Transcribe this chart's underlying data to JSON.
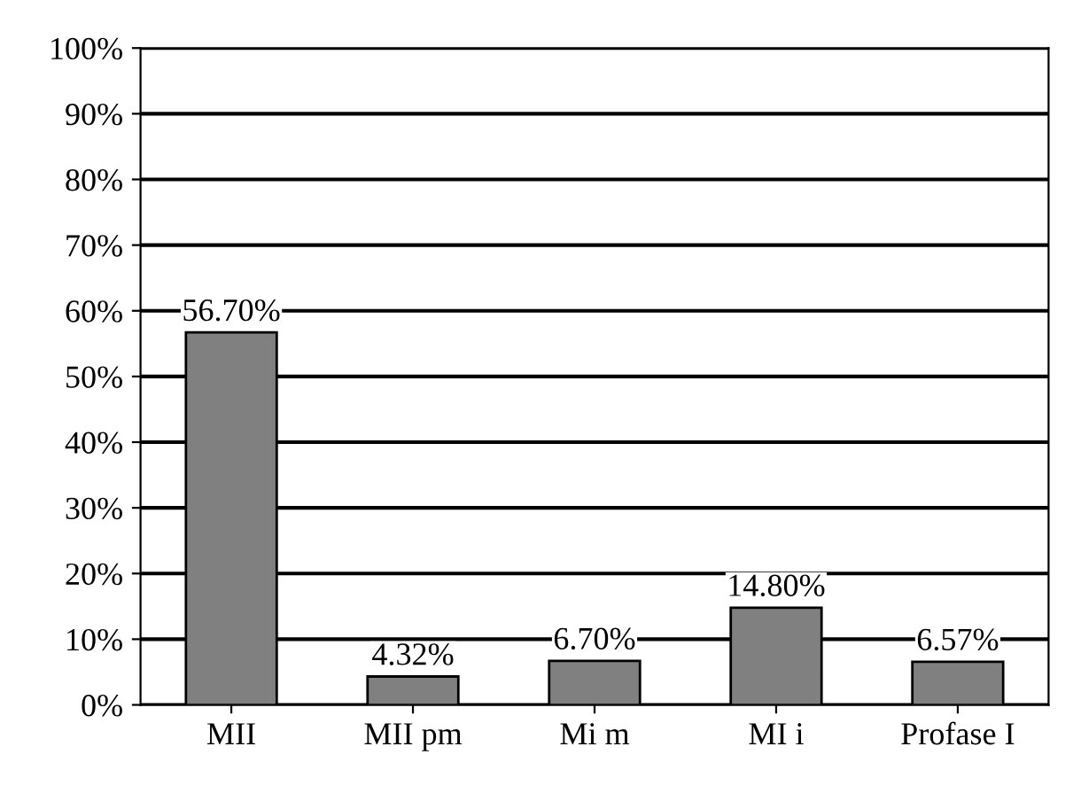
{
  "chart_data": {
    "type": "bar",
    "categories": [
      "MII",
      "MII pm",
      "Mi m",
      "MI i",
      "Profase I"
    ],
    "values": [
      56.7,
      4.32,
      6.7,
      14.8,
      6.57
    ],
    "value_labels": [
      "56.70%",
      "4.32%",
      "6.70%",
      "14.80%",
      "6.57%"
    ],
    "color": "#808080",
    "ylim": [
      0,
      100
    ],
    "yticks": [
      {
        "value": 0,
        "label": "0%"
      },
      {
        "value": 10,
        "label": "10%"
      },
      {
        "value": 20,
        "label": "20%"
      },
      {
        "value": 30,
        "label": "30%"
      },
      {
        "value": 40,
        "label": "40%"
      },
      {
        "value": 50,
        "label": "50%"
      },
      {
        "value": 60,
        "label": "60%"
      },
      {
        "value": 70,
        "label": "70%"
      },
      {
        "value": 80,
        "label": "80%"
      },
      {
        "value": 90,
        "label": "90%"
      },
      {
        "value": 100,
        "label": "100%"
      }
    ],
    "grid": "y"
  }
}
